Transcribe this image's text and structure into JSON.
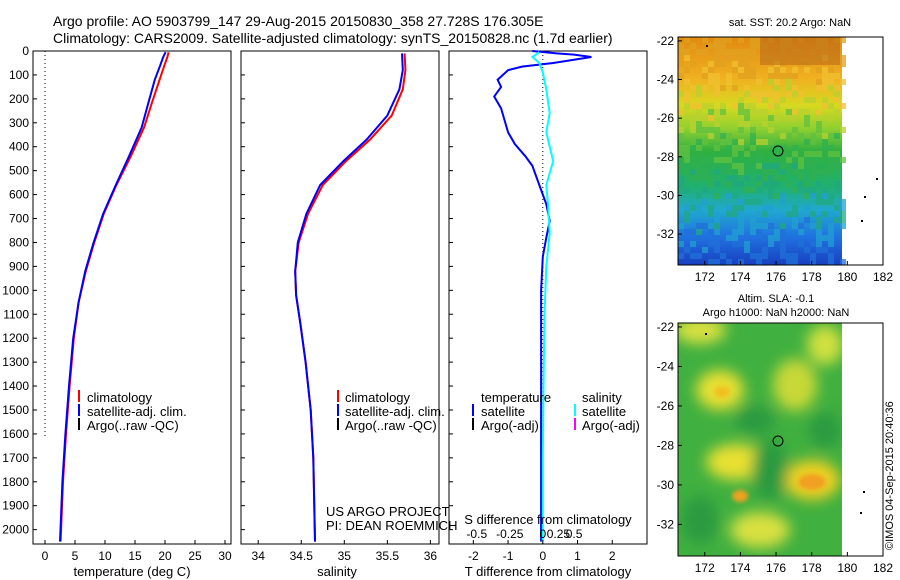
{
  "header": {
    "line1": "Argo profile: AO 5903799_147 29-Aug-2015 20150830_358 27.728S 176.305E",
    "line2": "Climatology: CARS2009. Satellite-adjusted climatology: synTS_20150828.nc (1.7d earlier)"
  },
  "colors": {
    "climatology": "#ff0000",
    "satellite": "#0000ff",
    "argo": "#000000",
    "salinity_satellite": "#00ffff",
    "salinity_argo": "#ff00ff"
  },
  "y_ticks": [
    "0",
    "100",
    "200",
    "300",
    "400",
    "500",
    "600",
    "700",
    "800",
    "900",
    "1000",
    "1100",
    "1200",
    "1300",
    "1400",
    "1500",
    "1600",
    "1700",
    "1800",
    "1900",
    "2000"
  ],
  "chart_data": [
    {
      "type": "line",
      "panel": "temperature",
      "xlabel": "temperature (deg C)",
      "xlim": [
        -2,
        31
      ],
      "ylim": [
        2060,
        0
      ],
      "xticks": [
        "0",
        "5",
        "10",
        "15",
        "20",
        "25",
        "30"
      ],
      "legend": [
        "climatology",
        "satellite-adj. clim.",
        "Argo(..raw -QC)"
      ],
      "series": [
        {
          "name": "climatology",
          "points": [
            [
              20.6,
              5
            ],
            [
              20.4,
              25
            ],
            [
              19.9,
              60
            ],
            [
              19.1,
              120
            ],
            [
              17.9,
              210
            ],
            [
              16.5,
              320
            ],
            [
              14.3,
              440
            ],
            [
              11.9,
              560
            ],
            [
              9.8,
              680
            ],
            [
              8.2,
              800
            ],
            [
              6.8,
              920
            ],
            [
              5.6,
              1050
            ],
            [
              4.8,
              1200
            ],
            [
              4.1,
              1400
            ],
            [
              3.5,
              1600
            ],
            [
              3.0,
              1800
            ],
            [
              2.6,
              2050
            ]
          ]
        },
        {
          "name": "satellite-adj. clim.",
          "points": [
            [
              20.1,
              5
            ],
            [
              19.7,
              25
            ],
            [
              19.2,
              60
            ],
            [
              18.3,
              120
            ],
            [
              17.3,
              210
            ],
            [
              16.1,
              320
            ],
            [
              14.0,
              440
            ],
            [
              11.8,
              560
            ],
            [
              9.7,
              680
            ],
            [
              8.1,
              800
            ],
            [
              6.7,
              920
            ],
            [
              5.6,
              1050
            ],
            [
              4.7,
              1200
            ],
            [
              4.0,
              1400
            ],
            [
              3.4,
              1600
            ],
            [
              2.9,
              1800
            ],
            [
              2.5,
              2050
            ]
          ]
        }
      ],
      "zero_line_x": 0,
      "zero_line_ylim": [
        0,
        1610
      ]
    },
    {
      "type": "line",
      "panel": "salinity",
      "xlabel": "salinity",
      "xlim": [
        33.8,
        36.1
      ],
      "ylim": [
        2060,
        0
      ],
      "xticks": [
        "34",
        "34.5",
        "35",
        "35.5",
        "36"
      ],
      "legend": [
        "climatology",
        "satellite-adj. clim.",
        "Argo(..raw -QC)"
      ],
      "series": [
        {
          "name": "climatology",
          "points": [
            [
              35.7,
              10
            ],
            [
              35.71,
              80
            ],
            [
              35.68,
              160
            ],
            [
              35.55,
              270
            ],
            [
              35.3,
              370
            ],
            [
              35.02,
              460
            ],
            [
              34.75,
              560
            ],
            [
              34.58,
              680
            ],
            [
              34.47,
              800
            ],
            [
              34.43,
              920
            ],
            [
              34.44,
              1020
            ],
            [
              34.49,
              1140
            ],
            [
              34.55,
              1300
            ],
            [
              34.61,
              1500
            ],
            [
              34.64,
              1700
            ],
            [
              34.66,
              2050
            ]
          ]
        },
        {
          "name": "satellite-adj. clim.",
          "points": [
            [
              35.67,
              10
            ],
            [
              35.68,
              80
            ],
            [
              35.64,
              160
            ],
            [
              35.5,
              270
            ],
            [
              35.26,
              370
            ],
            [
              34.99,
              460
            ],
            [
              34.72,
              560
            ],
            [
              34.56,
              680
            ],
            [
              34.46,
              800
            ],
            [
              34.43,
              920
            ],
            [
              34.44,
              1020
            ],
            [
              34.49,
              1140
            ],
            [
              34.55,
              1300
            ],
            [
              34.61,
              1500
            ],
            [
              34.64,
              1700
            ],
            [
              34.66,
              2050
            ]
          ]
        }
      ]
    },
    {
      "type": "line",
      "panel": "difference",
      "xlabel": "T difference from climatology",
      "xlabel2": "S difference from climatology",
      "xlim": [
        -2.7,
        3.0
      ],
      "ylim": [
        2060,
        0
      ],
      "xticks": [
        "-2",
        "-1",
        "0",
        "1",
        "2"
      ],
      "xticks_s": [
        "-0.5",
        "-0.25",
        "0",
        "0.25",
        "0.5"
      ],
      "xticks_s_values": [
        -1.9,
        -0.95,
        0,
        0.45,
        0.9
      ],
      "legend_t": [
        "temperature",
        "satellite",
        "Argo(-adj)"
      ],
      "legend_s": [
        "salinity",
        "satellite",
        "Argo(-adj)"
      ],
      "series": [
        {
          "name": "satellite",
          "variable": "temperature",
          "points": [
            [
              -0.3,
              0
            ],
            [
              0.4,
              10
            ],
            [
              0.9,
              15
            ],
            [
              1.4,
              25
            ],
            [
              0.3,
              50
            ],
            [
              -0.6,
              65
            ],
            [
              -1.0,
              80
            ],
            [
              -1.3,
              120
            ],
            [
              -1.2,
              150
            ],
            [
              -1.4,
              190
            ],
            [
              -1.2,
              240
            ],
            [
              -1.1,
              290
            ],
            [
              -1.0,
              340
            ],
            [
              -0.8,
              390
            ],
            [
              -0.5,
              440
            ],
            [
              -0.3,
              480
            ],
            [
              -0.1,
              560
            ],
            [
              0.1,
              640
            ],
            [
              0.2,
              710
            ],
            [
              0.1,
              780
            ],
            [
              0.0,
              860
            ],
            [
              -0.05,
              1000
            ],
            [
              -0.05,
              1200
            ],
            [
              -0.05,
              1500
            ],
            [
              -0.05,
              1800
            ],
            [
              -0.05,
              2050
            ]
          ]
        },
        {
          "name": "satellite",
          "variable": "salinity",
          "points": [
            [
              -0.1,
              5
            ],
            [
              -0.3,
              25
            ],
            [
              -0.1,
              50
            ],
            [
              0.0,
              90
            ],
            [
              0.1,
              160
            ],
            [
              0.2,
              260
            ],
            [
              0.1,
              340
            ],
            [
              0.3,
              460
            ],
            [
              0.1,
              560
            ],
            [
              0.15,
              640
            ],
            [
              0.2,
              760
            ],
            [
              0.1,
              900
            ],
            [
              0.05,
              1100
            ],
            [
              0.02,
              1400
            ],
            [
              0.0,
              1700
            ],
            [
              0.0,
              2050
            ]
          ]
        }
      ],
      "zero_line_x": 0
    },
    {
      "type": "heatmap",
      "panel": "sat-sst-map",
      "title": "sat. SST: 20.2  Argo: NaN",
      "xlim": [
        170.5,
        182
      ],
      "ylim": [
        -33.6,
        -21.8
      ],
      "xticks": [
        "172",
        "174",
        "176",
        "178",
        "180",
        "182"
      ],
      "yticks": [
        "-22",
        "-24",
        "-26",
        "-28",
        "-30",
        "-32"
      ],
      "argo_position": [
        176.305,
        -27.728
      ]
    },
    {
      "type": "heatmap",
      "panel": "altimetry-sla-map",
      "title_line1": "Altim. SLA: -0.1",
      "title_line2": "Argo h1000: NaN h2000: NaN",
      "xlim": [
        170.5,
        182
      ],
      "ylim": [
        -33.6,
        -21.8
      ],
      "xticks": [
        "172",
        "174",
        "176",
        "178",
        "180",
        "182"
      ],
      "yticks": [
        "-22",
        "-24",
        "-26",
        "-28",
        "-30",
        "-32"
      ],
      "argo_position": [
        176.305,
        -27.728
      ]
    }
  ],
  "project_line1": "US ARGO PROJECT",
  "project_line2": "PI: DEAN ROEMMICH",
  "credit": "©IMOS 04-Sep-2015 20:40:36"
}
